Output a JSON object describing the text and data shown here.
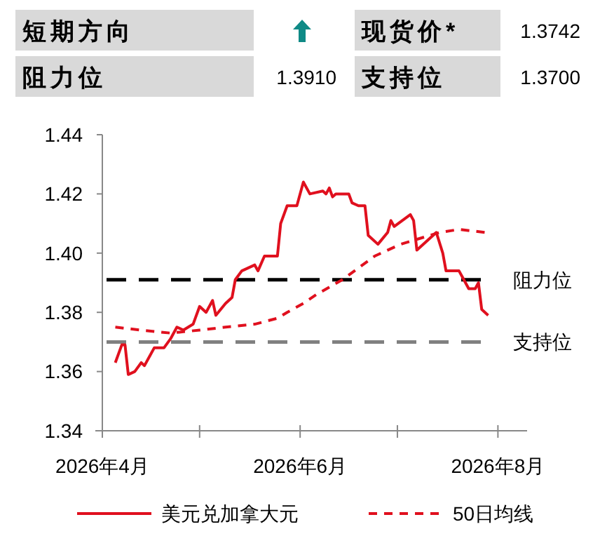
{
  "chart_data": {
    "type": "line",
    "annotations": [
      "短期方向",
      "现货价*",
      "1.3742",
      "阻力位",
      "1.3910",
      "支持位",
      "1.3700"
    ],
    "x": [
      "2026-04-05",
      "2026-04-07",
      "2026-04-08",
      "2026-04-09",
      "2026-04-11",
      "2026-04-13",
      "2026-04-14",
      "2026-04-17",
      "2026-04-20",
      "2026-04-22",
      "2026-04-24",
      "2026-04-26",
      "2026-04-29",
      "2026-05-01",
      "2026-05-03",
      "2026-05-05",
      "2026-05-06",
      "2026-05-09",
      "2026-05-11",
      "2026-05-12",
      "2026-05-14",
      "2026-05-18",
      "2026-05-19",
      "2026-05-21",
      "2026-05-25",
      "2026-05-26",
      "2026-05-28",
      "2026-05-31",
      "2026-06-02",
      "2026-06-04",
      "2026-06-08",
      "2026-06-09",
      "2026-06-10",
      "2026-06-11",
      "2026-06-12",
      "2026-06-16",
      "2026-06-17",
      "2026-06-19",
      "2026-06-21",
      "2026-06-22",
      "2026-06-25",
      "2026-06-28",
      "2026-06-29",
      "2026-06-30",
      "2026-07-05",
      "2026-07-06",
      "2026-07-07",
      "2026-07-12",
      "2026-07-13",
      "2026-07-15",
      "2026-07-16",
      "2026-07-19",
      "2026-07-20",
      "2026-07-21",
      "2026-07-23",
      "2026-07-25",
      "2026-07-26",
      "2026-07-27",
      "2026-07-29"
    ],
    "series": [
      {
        "name": "美元兑加拿大元",
        "color": "#e0101e",
        "line_style": "solid",
        "values": [
          1.363,
          1.369,
          1.369,
          1.359,
          1.36,
          1.363,
          1.362,
          1.368,
          1.368,
          1.371,
          1.375,
          1.374,
          1.376,
          1.382,
          1.38,
          1.384,
          1.379,
          1.383,
          1.385,
          1.391,
          1.394,
          1.396,
          1.394,
          1.399,
          1.399,
          1.41,
          1.416,
          1.416,
          1.424,
          1.42,
          1.421,
          1.42,
          1.422,
          1.419,
          1.42,
          1.42,
          1.417,
          1.416,
          1.416,
          1.406,
          1.403,
          1.407,
          1.411,
          1.409,
          1.413,
          1.411,
          1.401,
          1.406,
          1.407,
          1.4,
          1.394,
          1.394,
          1.394,
          1.392,
          1.388,
          1.388,
          1.39,
          1.381,
          1.379
        ]
      },
      {
        "name": "50日均线",
        "color": "#e0101e",
        "line_style": "dashed",
        "x": [
          "2026-04-05",
          "2026-04-13",
          "2026-04-22",
          "2026-05-01",
          "2026-05-09",
          "2026-05-18",
          "2026-05-25",
          "2026-05-28",
          "2026-06-02",
          "2026-06-06",
          "2026-06-14",
          "2026-06-24",
          "2026-07-02",
          "2026-07-14",
          "2026-07-20",
          "2026-07-28"
        ],
        "values": [
          1.375,
          1.374,
          1.373,
          1.374,
          1.375,
          1.376,
          1.378,
          1.38,
          1.383,
          1.386,
          1.391,
          1.399,
          1.403,
          1.407,
          1.408,
          1.407
        ]
      }
    ],
    "xlim": [
      "2026-04-01",
      "2026-08-10"
    ],
    "xticks": [
      {
        "value": "2026-04-01",
        "label": "2026年4月"
      },
      {
        "value": "2026-05-01",
        "label": null
      },
      {
        "value": "2026-06-01",
        "label": "2026年6月"
      },
      {
        "value": "2026-07-01",
        "label": null
      },
      {
        "value": "2026-08-01",
        "label": "2026年8月"
      }
    ],
    "ylim": [
      1.34,
      1.44
    ],
    "yticks": [
      1.34,
      1.36,
      1.38,
      {
        "value": 1.4,
        "label": "1.40"
      },
      1.42,
      1.44
    ],
    "ref_lines": [
      {
        "axis": "y",
        "value": 1.391,
        "label": "阻力位",
        "color": "#000000",
        "line_style": "dashed"
      },
      {
        "axis": "y",
        "value": 1.37,
        "label": "支持位",
        "color": "#808080",
        "line_style": "dashed"
      }
    ],
    "legend": "bottom",
    "grid": false,
    "marker": "none"
  }
}
